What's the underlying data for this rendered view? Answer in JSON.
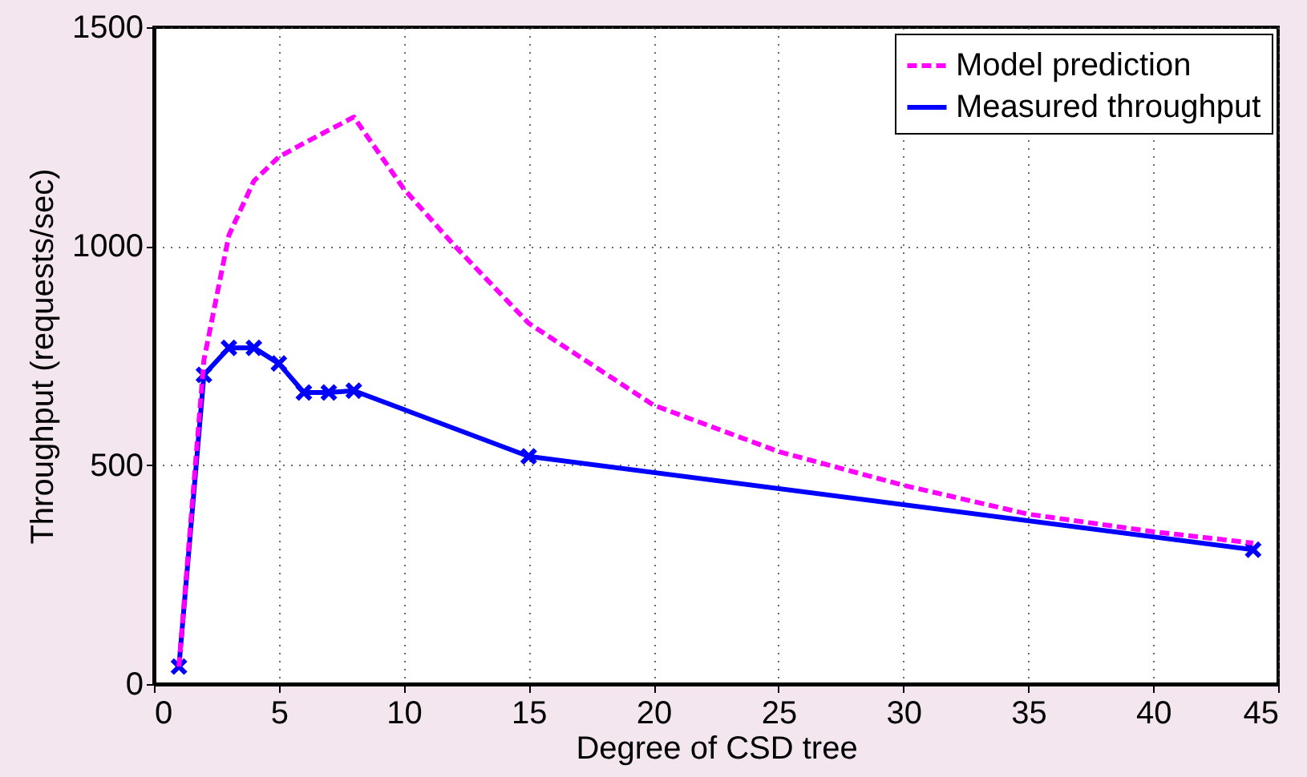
{
  "chart_data": {
    "type": "line",
    "xlabel": "Degree of CSD tree",
    "ylabel": "Throughput (requests/sec)",
    "xlim": [
      0,
      45
    ],
    "xticks": [
      0,
      5,
      10,
      15,
      20,
      25,
      30,
      35,
      40,
      45
    ],
    "ylim": [
      0,
      1500
    ],
    "yticks": [
      0,
      500,
      1000,
      1500
    ],
    "grid": true,
    "legend": "top right",
    "series": [
      {
        "name": "Model prediction",
        "color": "#ff00ff",
        "line_style": "dashed",
        "marker": "none",
        "x": [
          1,
          2,
          3,
          4,
          5,
          6,
          7,
          8,
          10,
          12,
          15,
          20,
          25,
          30,
          35,
          40,
          44
        ],
        "values": [
          40,
          740,
          1025,
          1149,
          1204,
          1235,
          1265,
          1295,
          1131,
          1003,
          824,
          637,
          531,
          454,
          388,
          348,
          322
        ]
      },
      {
        "name": "Measured throughput",
        "color": "#0000ff",
        "line_style": "solid",
        "marker": "cross",
        "x": [
          1,
          2,
          3,
          4,
          5,
          6,
          7,
          8,
          15,
          44
        ],
        "values": [
          40,
          706,
          768,
          768,
          732,
          666,
          666,
          670,
          520,
          307
        ]
      }
    ]
  }
}
